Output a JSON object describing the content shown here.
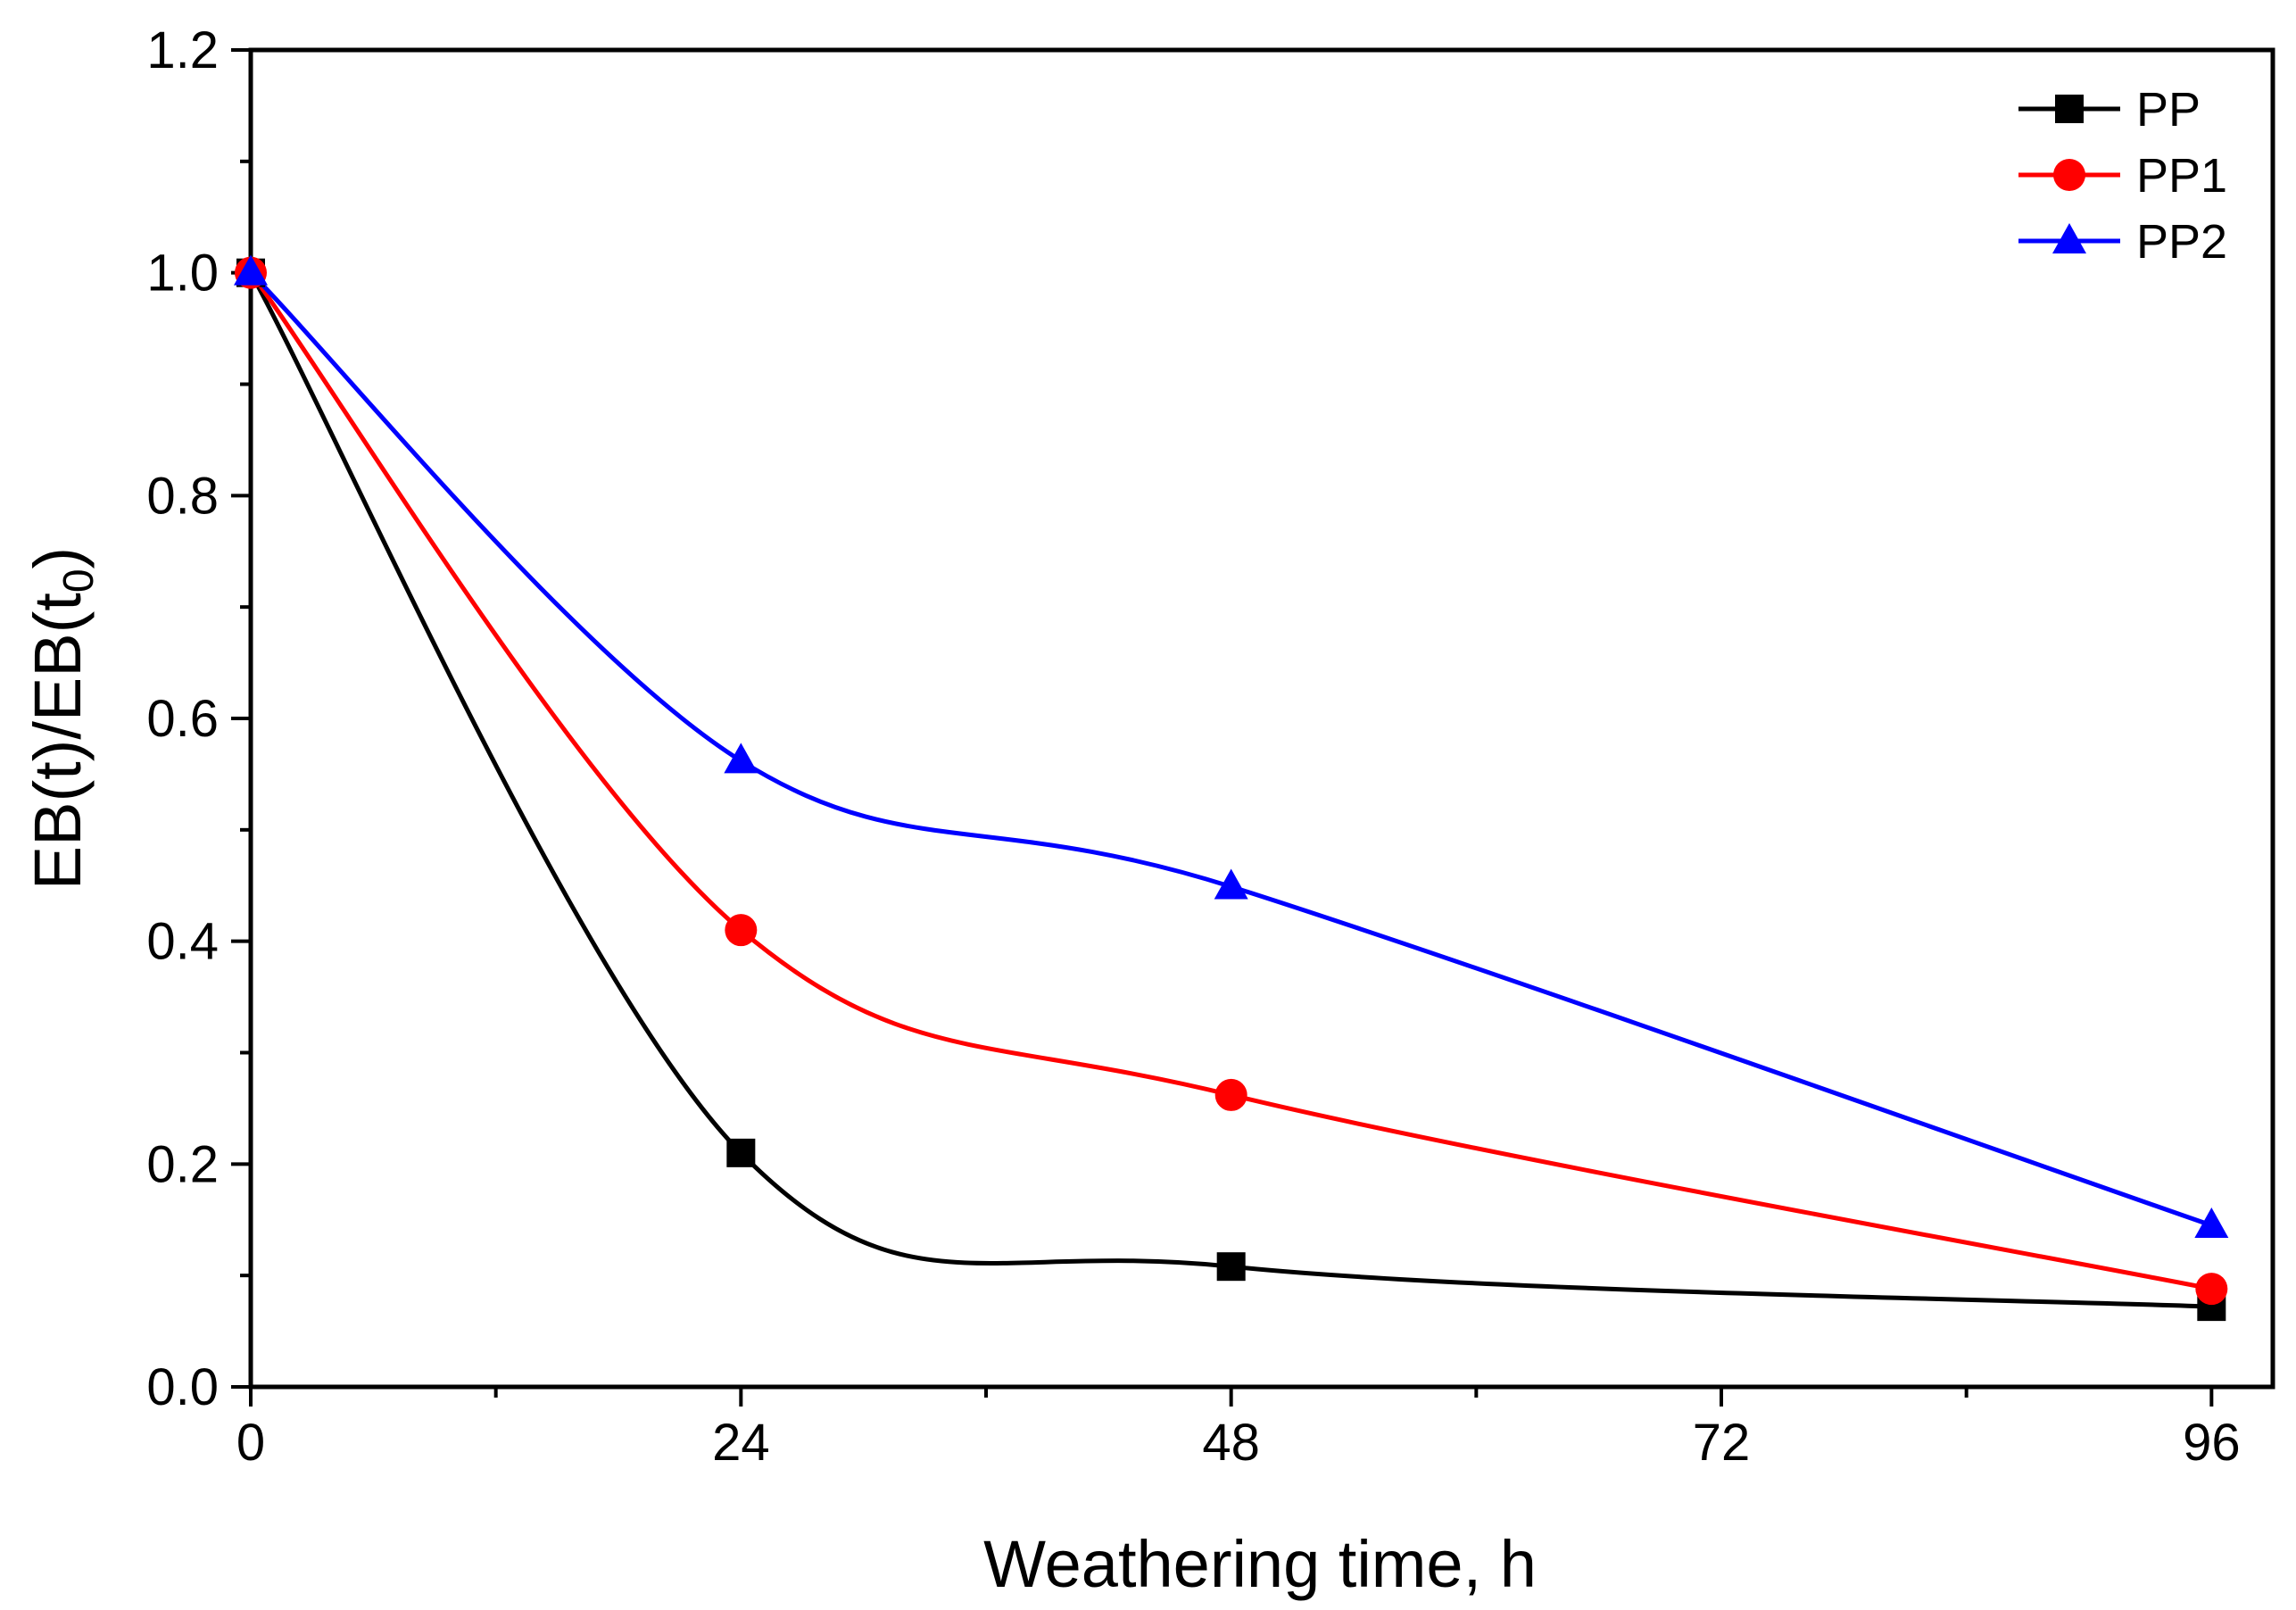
{
  "chart_data": {
    "type": "line",
    "title": "",
    "xlabel": "Weathering time, h",
    "ylabel": {
      "main": "EB(t)/EB(t",
      "sub": "0",
      "close": ")"
    },
    "xlim": [
      0,
      99
    ],
    "ylim": [
      0,
      1.2
    ],
    "x_ticks": [
      0,
      24,
      48,
      72,
      96
    ],
    "x_tick_labels": [
      "0",
      "24",
      "48",
      "72",
      "96"
    ],
    "x_minor_ticks": [
      12,
      36,
      60,
      84
    ],
    "y_ticks": [
      0,
      0.2,
      0.4,
      0.6,
      0.8,
      1.0,
      1.2
    ],
    "y_tick_labels": [
      "0.0",
      "0.2",
      "0.4",
      "0.6",
      "0.8",
      "1.0",
      "1.2"
    ],
    "y_minor_ticks": [
      0.1,
      0.3,
      0.5,
      0.7,
      0.9,
      1.1
    ],
    "legend_position": "top-right",
    "grid": false,
    "x": [
      0,
      24,
      48,
      96
    ],
    "series": [
      {
        "name": "PP",
        "color": "#000000",
        "marker": "square",
        "values": [
          1.0,
          0.21,
          0.108,
          0.072
        ]
      },
      {
        "name": "PP1",
        "color": "#ff0000",
        "marker": "circle",
        "values": [
          1.0,
          0.41,
          0.262,
          0.088
        ]
      },
      {
        "name": "PP2",
        "color": "#0000ff",
        "marker": "triangle",
        "values": [
          1.0,
          0.562,
          0.449,
          0.145
        ]
      }
    ]
  }
}
